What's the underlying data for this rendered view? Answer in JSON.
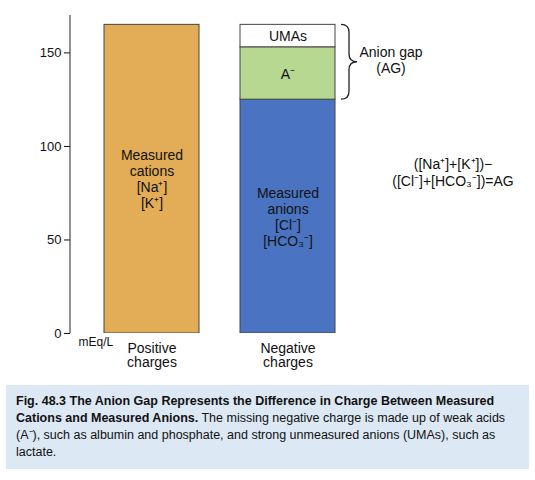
{
  "chart_data": {
    "type": "bar",
    "stacked": true,
    "categories": [
      "Positive charges",
      "Negative charges"
    ],
    "ylabel": "mEq/L",
    "ylim": [
      0,
      170
    ],
    "yticks": [
      0,
      50,
      100,
      150
    ],
    "series": [
      {
        "name": "Measured cations",
        "sublabels": [
          "[Na⁺]",
          "[K⁺]"
        ],
        "color": "#e3ac56",
        "values": [
          165,
          null
        ]
      },
      {
        "name": "Measured anions",
        "sublabels": [
          "[Cl⁻]",
          "[HCO₃⁻]"
        ],
        "color": "#4a74c2",
        "values": [
          null,
          125
        ]
      },
      {
        "name": "A⁻",
        "color": "#b6d891",
        "values": [
          null,
          28
        ]
      },
      {
        "name": "UMAs",
        "color": "#ffffff",
        "values": [
          null,
          12
        ]
      }
    ],
    "annotations": [
      {
        "text": [
          "Anion gap",
          "(AG)"
        ],
        "series": [
          "A⁻",
          "UMAs"
        ]
      },
      {
        "text": [
          "([Na⁺]+[K⁺])−",
          "([Cl⁻]+[HCO₃⁻])=AG"
        ]
      }
    ],
    "caption": {
      "title": "Fig. 48.3 The Anion Gap Represents the Difference in Charge Between Measured Cations and Measured Anions.",
      "text": "The missing negative charge is made up of weak acids (A⁻), such as albumin and phosphate, and strong unmeasured anions (UMAs), such as lactate."
    }
  }
}
